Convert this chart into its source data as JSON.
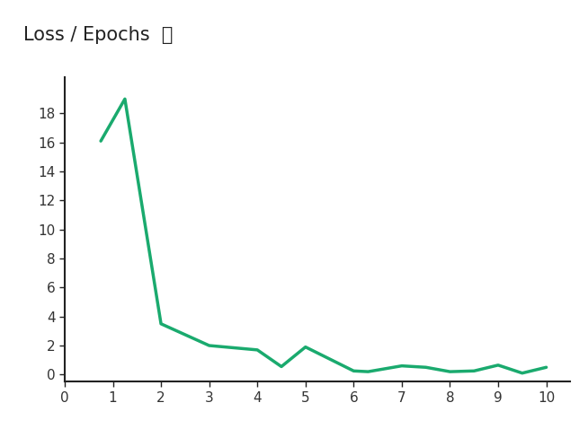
{
  "x": [
    0.75,
    1.25,
    2.0,
    3.0,
    3.5,
    4.0,
    4.5,
    5.0,
    6.0,
    6.3,
    7.0,
    7.5,
    8.0,
    8.5,
    9.0,
    9.5,
    10.0
  ],
  "y": [
    16.1,
    19.0,
    3.5,
    2.0,
    1.85,
    1.7,
    0.55,
    1.9,
    0.25,
    0.2,
    0.6,
    0.5,
    0.2,
    0.25,
    0.65,
    0.1,
    0.5
  ],
  "line_color": "#1aaa6e",
  "line_width": 2.5,
  "title": "Loss / Epochs",
  "title_fontsize": 15,
  "title_color": "#222222",
  "background_color": "#ffffff",
  "axes_background": "#ffffff",
  "xlim": [
    0,
    10.5
  ],
  "ylim": [
    -0.5,
    20.5
  ],
  "xticks": [
    0,
    1,
    2,
    3,
    4,
    5,
    6,
    7,
    8,
    9,
    10
  ],
  "yticks": [
    0,
    2,
    4,
    6,
    8,
    10,
    12,
    14,
    16,
    18
  ],
  "tick_fontsize": 11,
  "tick_color": "#333333",
  "spine_color": "#222222",
  "grid": false
}
